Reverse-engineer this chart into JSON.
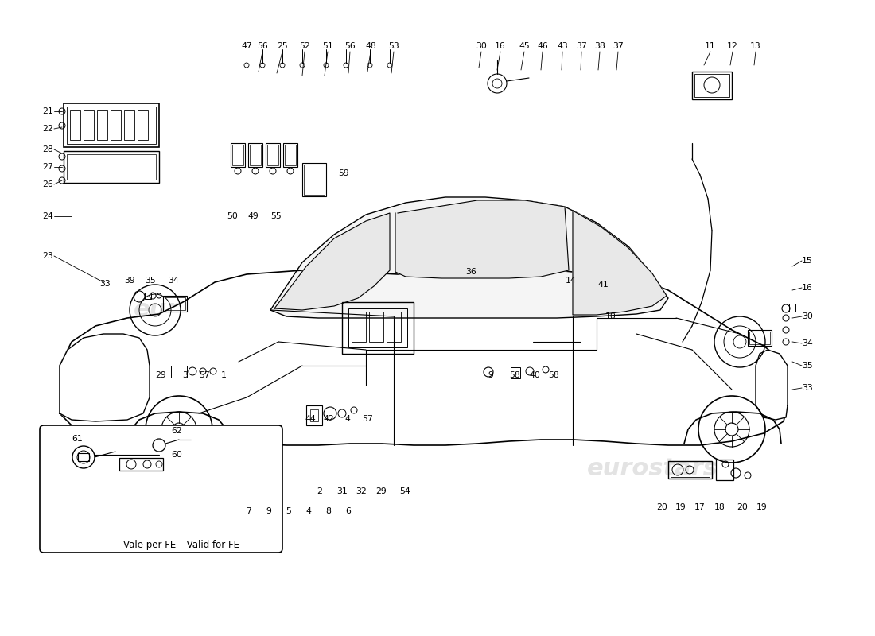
{
  "bg_color": "#ffffff",
  "line_color": "#000000",
  "watermark_color": "#c8c8c8",
  "inset_label": "Vale per FE – Valid for FE",
  "top_labels": [
    [
      310,
      58,
      "47"
    ],
    [
      330,
      58,
      "56"
    ],
    [
      355,
      58,
      "25"
    ],
    [
      383,
      58,
      "52"
    ],
    [
      412,
      58,
      "51"
    ],
    [
      440,
      58,
      "56"
    ],
    [
      466,
      58,
      "48"
    ],
    [
      495,
      58,
      "53"
    ],
    [
      605,
      58,
      "30"
    ],
    [
      629,
      58,
      "16"
    ],
    [
      659,
      58,
      "45"
    ],
    [
      682,
      58,
      "46"
    ],
    [
      707,
      58,
      "43"
    ],
    [
      731,
      58,
      "37"
    ],
    [
      754,
      58,
      "38"
    ],
    [
      777,
      58,
      "37"
    ],
    [
      893,
      58,
      "11"
    ],
    [
      921,
      58,
      "12"
    ],
    [
      950,
      58,
      "13"
    ]
  ],
  "left_labels": [
    [
      60,
      140,
      "21"
    ],
    [
      60,
      162,
      "22"
    ],
    [
      60,
      188,
      "28"
    ],
    [
      60,
      210,
      "27"
    ],
    [
      60,
      232,
      "26"
    ],
    [
      60,
      272,
      "24"
    ],
    [
      60,
      322,
      "23"
    ]
  ],
  "mid_up_labels": [
    [
      292,
      272,
      "50"
    ],
    [
      318,
      272,
      "49"
    ],
    [
      347,
      272,
      "55"
    ],
    [
      432,
      218,
      "59"
    ]
  ],
  "mid_labels": [
    [
      132,
      357,
      "33"
    ],
    [
      163,
      353,
      "39"
    ],
    [
      189,
      353,
      "35"
    ],
    [
      218,
      353,
      "34"
    ],
    [
      592,
      342,
      "36"
    ],
    [
      718,
      353,
      "14"
    ],
    [
      758,
      358,
      "41"
    ],
    [
      768,
      398,
      "10"
    ]
  ],
  "bot_labels": [
    [
      202,
      472,
      "29"
    ],
    [
      233,
      472,
      "3"
    ],
    [
      257,
      472,
      "57"
    ],
    [
      281,
      472,
      "1"
    ],
    [
      390,
      527,
      "44"
    ],
    [
      413,
      527,
      "42"
    ],
    [
      437,
      527,
      "4"
    ],
    [
      462,
      527,
      "57"
    ],
    [
      402,
      618,
      "2"
    ],
    [
      430,
      618,
      "31"
    ],
    [
      454,
      618,
      "32"
    ],
    [
      479,
      618,
      "29"
    ],
    [
      509,
      618,
      "54"
    ],
    [
      617,
      472,
      "9"
    ],
    [
      647,
      472,
      "58"
    ],
    [
      672,
      472,
      "40"
    ],
    [
      696,
      472,
      "58"
    ]
  ],
  "right_labels": [
    [
      1015,
      328,
      "15"
    ],
    [
      1015,
      362,
      "16"
    ],
    [
      1015,
      398,
      "30"
    ],
    [
      1015,
      432,
      "34"
    ],
    [
      1015,
      460,
      "35"
    ],
    [
      1015,
      488,
      "33"
    ]
  ],
  "rb_labels": [
    [
      832,
      638,
      "20"
    ],
    [
      856,
      638,
      "19"
    ],
    [
      880,
      638,
      "17"
    ],
    [
      905,
      638,
      "18"
    ],
    [
      933,
      638,
      "20"
    ],
    [
      958,
      638,
      "19"
    ]
  ],
  "inset_labels_data": [
    [
      97,
      552,
      "61"
    ],
    [
      222,
      542,
      "62"
    ],
    [
      222,
      572,
      "60"
    ],
    [
      313,
      643,
      "7"
    ],
    [
      338,
      643,
      "9"
    ],
    [
      363,
      643,
      "5"
    ],
    [
      388,
      643,
      "4"
    ],
    [
      413,
      643,
      "8"
    ],
    [
      438,
      643,
      "6"
    ]
  ]
}
